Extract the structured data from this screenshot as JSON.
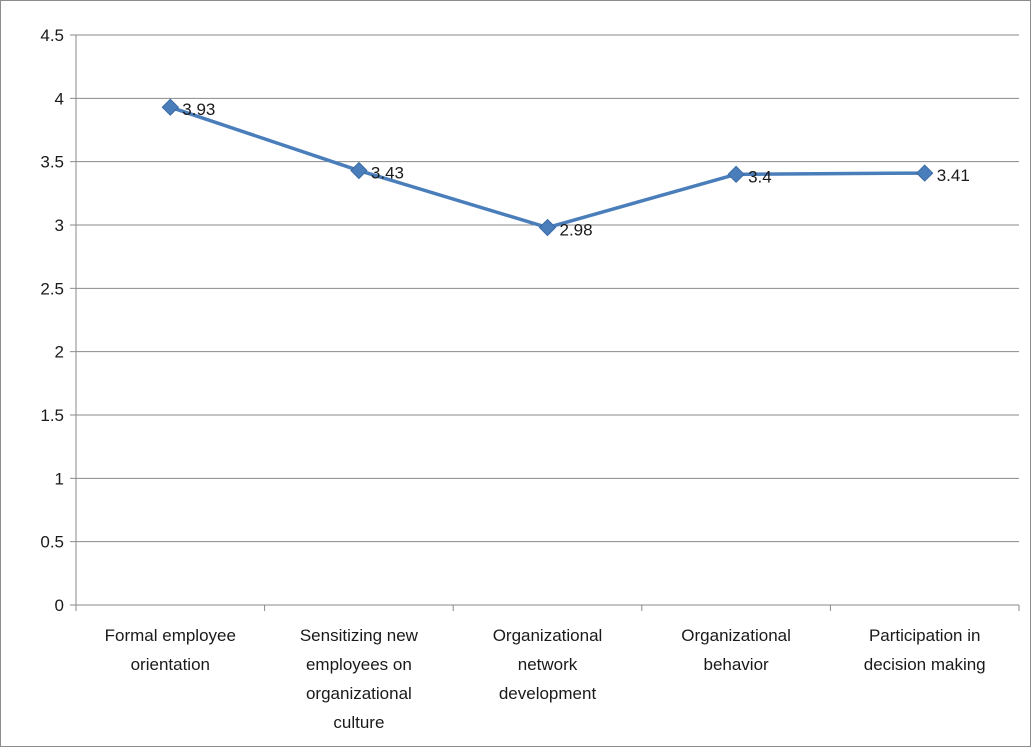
{
  "chart_data": {
    "type": "line",
    "title": "",
    "xlabel": "",
    "ylabel": "",
    "ylim": [
      0,
      4.5
    ],
    "yticks": [
      "0",
      "0.5",
      "1",
      "1.5",
      "2",
      "2.5",
      "3",
      "3.5",
      "4",
      "4.5"
    ],
    "grid": true,
    "legend": "none",
    "categories": [
      [
        "Formal employee",
        "orientation"
      ],
      [
        "Sensitizing  new",
        "employees on",
        "organizational",
        "culture"
      ],
      [
        "Organizational",
        "network",
        "development"
      ],
      [
        "Organizational",
        "behavior"
      ],
      [
        "Participation in",
        "decision making"
      ]
    ],
    "series": [
      {
        "values": [
          3.93,
          3.43,
          2.98,
          3.4,
          3.41
        ],
        "labels": [
          "3.93",
          "3.43",
          "2.98",
          "3.4",
          "3.41"
        ],
        "color": "#4a7ebb"
      }
    ]
  }
}
